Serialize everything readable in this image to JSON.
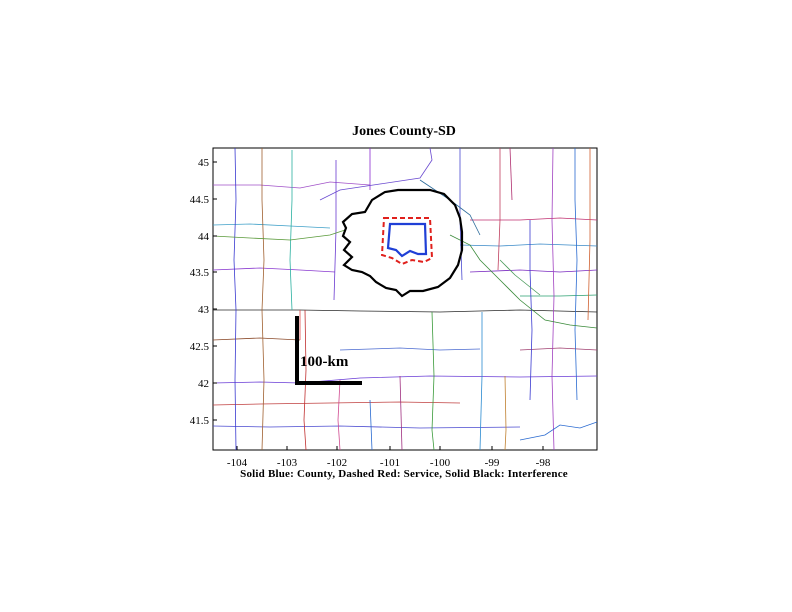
{
  "title": "Jones County-SD",
  "caption": "Solid Blue: County, Dashed Red: Service, Solid Black: Interference",
  "scale_bar_label": "100-km",
  "x_ticks": [
    "-104",
    "-103",
    "-102",
    "-101",
    "-100",
    "-99",
    "-98"
  ],
  "y_ticks": [
    "45",
    "44.5",
    "44",
    "43.5",
    "43",
    "42.5",
    "42",
    "41.5"
  ],
  "colors": {
    "county": "#1f3fd6",
    "service": "#e0201c",
    "interference": "#000000"
  }
}
